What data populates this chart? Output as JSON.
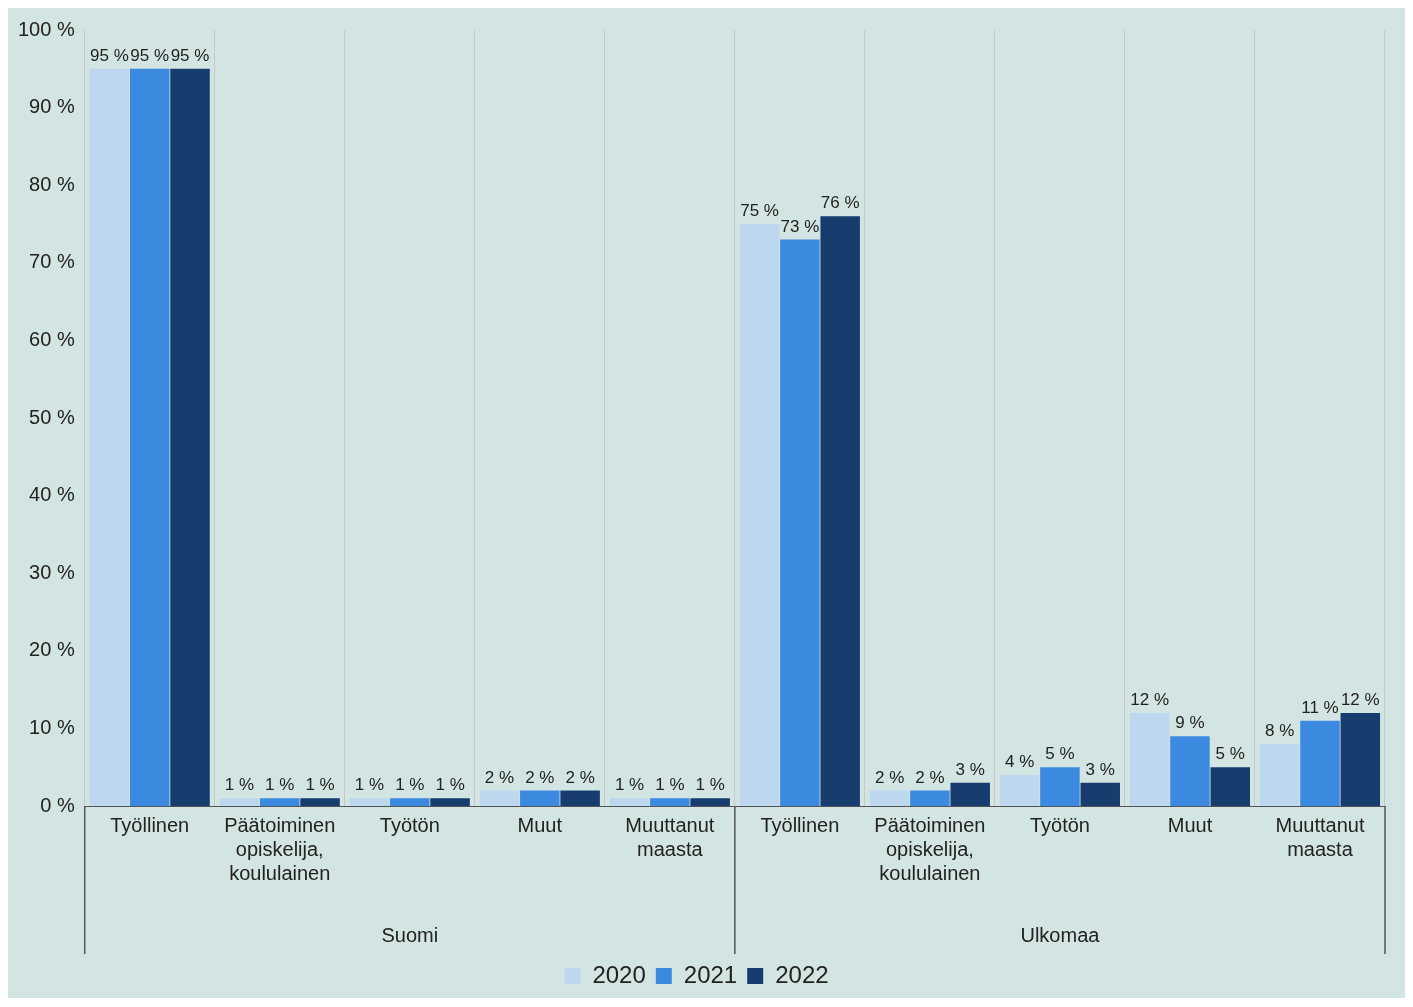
{
  "chart_data": {
    "type": "bar",
    "categories": [
      "Työllinen",
      "Päätoiminen opiskelija, koululainen",
      "Työtön",
      "Muut",
      "Muuttanut maasta",
      "Työllinen",
      "Päätoiminen opiskelija, koululainen",
      "Työtön",
      "Muut",
      "Muuttanut maasta"
    ],
    "series": [
      {
        "name": "2020",
        "color": "#bdd7ee",
        "values": [
          95,
          1,
          1,
          2,
          1,
          75,
          2,
          4,
          12,
          8
        ],
        "value_labels": [
          "95 %",
          "1 %",
          "1 %",
          "2 %",
          "1 %",
          "75 %",
          "2 %",
          "4 %",
          "12 %",
          "8 %"
        ]
      },
      {
        "name": "2021",
        "color": "#3b8ae0",
        "values": [
          95,
          1,
          1,
          2,
          1,
          73,
          2,
          5,
          9,
          11
        ],
        "value_labels": [
          "95 %",
          "1 %",
          "1 %",
          "2 %",
          "1 %",
          "73 %",
          "2 %",
          "5 %",
          "9 %",
          "11 %"
        ]
      },
      {
        "name": "2022",
        "color": "#163d6e",
        "values": [
          95,
          1,
          1,
          2,
          1,
          76,
          3,
          3,
          5,
          12
        ],
        "value_labels": [
          "95 %",
          "1 %",
          "1 %",
          "2 %",
          "1 %",
          "76 %",
          "3 %",
          "3 %",
          "5 %",
          "12 %"
        ]
      }
    ],
    "annotations": [
      "Suomi",
      "Ulkomaa"
    ],
    "ylim": [
      0,
      100
    ],
    "yticks": [
      {
        "value": 0,
        "label": "0 %"
      },
      {
        "value": 10,
        "label": "10 %"
      },
      {
        "value": 20,
        "label": "20 %"
      },
      {
        "value": 30,
        "label": "30 %"
      },
      {
        "value": 40,
        "label": "40 %"
      },
      {
        "value": 50,
        "label": "50 %"
      },
      {
        "value": 60,
        "label": "60 %"
      },
      {
        "value": 70,
        "label": "70 %"
      },
      {
        "value": 80,
        "label": "80 %"
      },
      {
        "value": 90,
        "label": "90 %"
      },
      {
        "value": 100,
        "label": "100 %"
      }
    ],
    "grid": "x",
    "legend": "bottom"
  }
}
